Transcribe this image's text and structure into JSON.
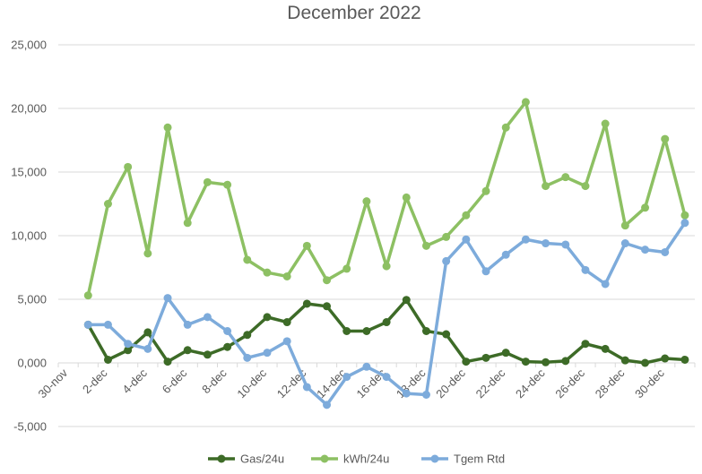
{
  "chart_data": {
    "type": "line",
    "title": "December 2022",
    "xlabel": "",
    "ylabel": "",
    "ylim": [
      -5000,
      25000
    ],
    "yticks": [
      -5000,
      0,
      5000,
      10000,
      15000,
      20000,
      25000
    ],
    "ytick_labels": [
      "-5,000",
      "0,000",
      "5,000",
      "10,000",
      "15,000",
      "20,000",
      "25,000"
    ],
    "x_start": "30-nov",
    "xtick_labels": [
      "30-nov",
      "2-dec",
      "4-dec",
      "6-dec",
      "8-dec",
      "10-dec",
      "12-dec",
      "14-dec",
      "16-dec",
      "18-dec",
      "20-dec",
      "22-dec",
      "24-dec",
      "26-dec",
      "28-dec",
      "30-dec"
    ],
    "x": [
      "1-dec",
      "2-dec",
      "3-dec",
      "4-dec",
      "5-dec",
      "6-dec",
      "7-dec",
      "8-dec",
      "9-dec",
      "10-dec",
      "11-dec",
      "12-dec",
      "13-dec",
      "14-dec",
      "15-dec",
      "16-dec",
      "17-dec",
      "18-dec",
      "19-dec",
      "20-dec",
      "21-dec",
      "22-dec",
      "23-dec",
      "24-dec",
      "25-dec",
      "26-dec",
      "27-dec",
      "28-dec",
      "29-dec",
      "30-dec",
      "31-dec"
    ],
    "legend_position": "bottom",
    "grid": true,
    "series": [
      {
        "name": "Gas/24u",
        "color": "#3d6b27",
        "values": [
          3000,
          250,
          1000,
          2400,
          100,
          1000,
          650,
          1250,
          2200,
          3600,
          3200,
          4650,
          4450,
          2500,
          2500,
          3200,
          4950,
          2500,
          2250,
          100,
          400,
          800,
          100,
          50,
          150,
          1500,
          1100,
          200,
          0,
          350,
          250
        ]
      },
      {
        "name": "kWh/24u",
        "color": "#8dc063",
        "values": [
          5300,
          12500,
          15400,
          8600,
          18500,
          11000,
          14200,
          14000,
          8100,
          7100,
          6800,
          9200,
          6500,
          7400,
          12700,
          7600,
          13000,
          9200,
          9900,
          11600,
          13500,
          18500,
          20500,
          13900,
          14600,
          13900,
          18800,
          10800,
          12200,
          17600,
          11600
        ]
      },
      {
        "name": "Tgem Rtd",
        "color": "#7dabdb",
        "values": [
          3000,
          3000,
          1500,
          1100,
          5100,
          3000,
          3600,
          2500,
          400,
          800,
          1700,
          -1900,
          -3300,
          -1100,
          -300,
          -1100,
          -2400,
          -2500,
          8000,
          9700,
          7200,
          8500,
          9700,
          9400,
          9300,
          7300,
          6200,
          9400,
          8900,
          8700,
          11000
        ]
      }
    ]
  }
}
